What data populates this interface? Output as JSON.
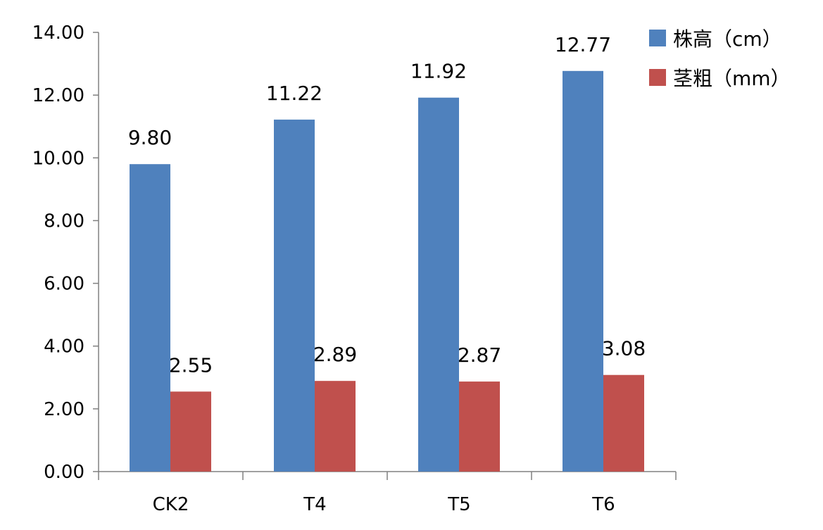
{
  "chart_data": {
    "type": "bar",
    "title": "",
    "xlabel": "",
    "ylabel": "",
    "categories": [
      "CK2",
      "T4",
      "T5",
      "T6"
    ],
    "series": [
      {
        "name": "株高（cm）",
        "color": "#4F81BD",
        "values": [
          9.8,
          11.22,
          11.92,
          12.77
        ],
        "labels": [
          "9.80",
          "11.22",
          "11.92",
          "12.77"
        ]
      },
      {
        "name": "茎粗（mm）",
        "color": "#C0504D",
        "values": [
          2.55,
          2.89,
          2.87,
          3.08
        ],
        "labels": [
          "2.55",
          "2.89",
          "2.87",
          "3.08"
        ]
      }
    ],
    "ylim": [
      0,
      14
    ],
    "yticks": [
      0,
      2,
      4,
      6,
      8,
      10,
      12,
      14
    ],
    "ytick_labels": [
      "0.00",
      "2.00",
      "4.00",
      "6.00",
      "8.00",
      "10.00",
      "12.00",
      "14.00"
    ],
    "grid": false,
    "legend_position": "top-right"
  }
}
